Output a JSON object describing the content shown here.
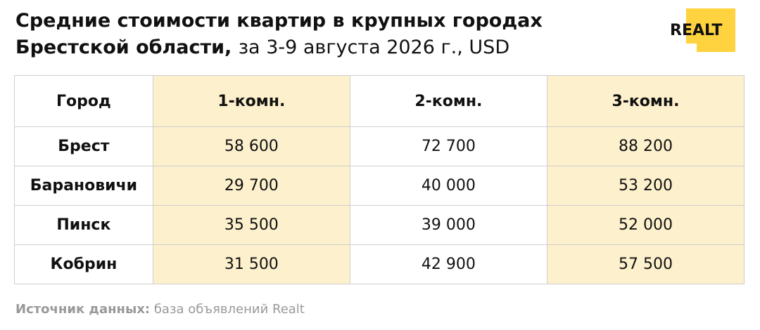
{
  "header": {
    "title_line1": "Средние стоимости квартир в крупных городах",
    "title_line2_bold": "Брестской области,",
    "title_line2_regular": "за 3-9 августа 2026 г., USD",
    "logo": "REALT"
  },
  "table": {
    "columns": [
      "Город",
      "1-комн.",
      "2-комн.",
      "3-комн."
    ],
    "rows": [
      [
        "Брест",
        "58 600",
        "72 700",
        "88 200"
      ],
      [
        "Барановичи",
        "29 700",
        "40 000",
        "53 200"
      ],
      [
        "Пинск",
        "35 500",
        "39 000",
        "52 000"
      ],
      [
        "Кобрин",
        "31 500",
        "42 900",
        "57 500"
      ]
    ]
  },
  "footer": {
    "label": "Источник данных:",
    "text": "база объявлений Realt"
  }
}
